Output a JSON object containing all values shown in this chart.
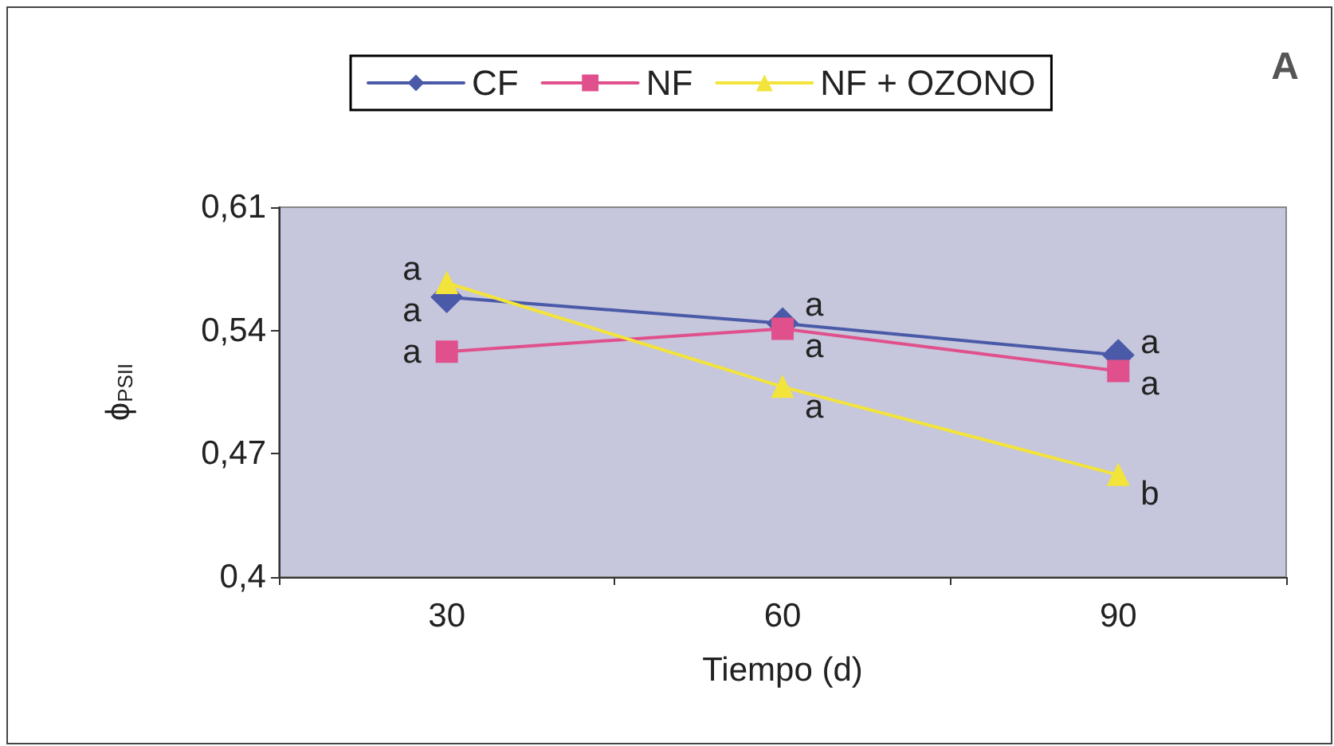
{
  "chart_data": {
    "type": "line",
    "xlabel": "Tiempo (d)",
    "ylabel": "ϕ$_{PSII}$",
    "categories": [
      "30",
      "60",
      "90"
    ],
    "series": [
      {
        "name": "CF",
        "color": "#4a5aa8",
        "marker": "diamond",
        "values": [
          0.559,
          0.544,
          0.526
        ]
      },
      {
        "name": "NF",
        "color": "#e0508c",
        "marker": "square",
        "values": [
          0.528,
          0.541,
          0.517
        ]
      },
      {
        "name": "NF + OZONO",
        "color": "#f2e43a",
        "marker": "triangle",
        "values": [
          0.567,
          0.508,
          0.458
        ]
      }
    ],
    "ylim": [
      0.4,
      0.61
    ],
    "yticks": [
      {
        "value": 0.4,
        "label": "0,4"
      },
      {
        "value": 0.47,
        "label": "0,47"
      },
      {
        "value": 0.54,
        "label": "0,54"
      },
      {
        "value": 0.61,
        "label": "0,61"
      }
    ],
    "grid": false,
    "legend": "top",
    "line_style": "solid",
    "annotations": [
      "A",
      {
        "text": "a",
        "x": "30",
        "y": 0.567
      },
      {
        "text": "a",
        "x": "30",
        "y": 0.559
      },
      {
        "text": "a",
        "x": "30",
        "y": 0.528
      },
      {
        "text": "a",
        "x": "60",
        "y": 0.544
      },
      {
        "text": "a",
        "x": "60",
        "y": 0.541
      },
      {
        "text": "a",
        "x": "60",
        "y": 0.508
      },
      {
        "text": "a",
        "x": "90",
        "y": 0.526
      },
      {
        "text": "a",
        "x": "90",
        "y": 0.517
      },
      {
        "text": "b",
        "x": "90",
        "y": 0.458
      }
    ]
  }
}
